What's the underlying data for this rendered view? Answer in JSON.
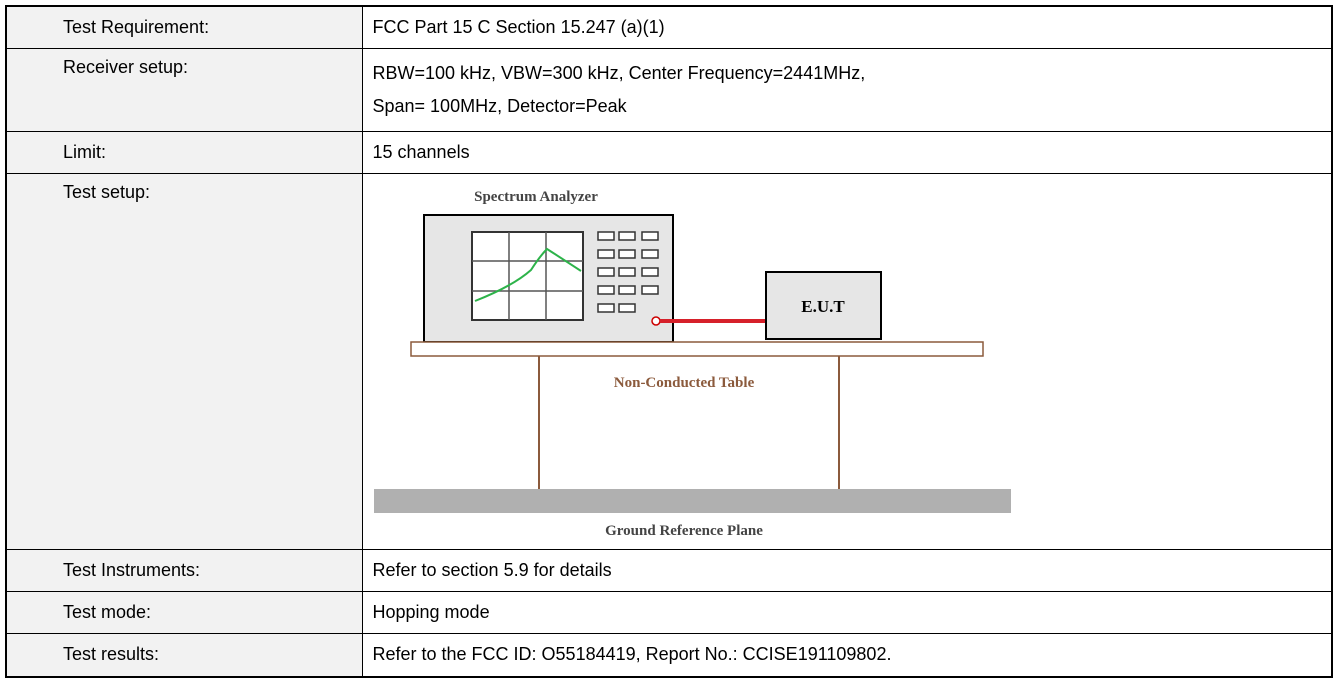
{
  "table": {
    "rows": [
      {
        "label": "Test Requirement:",
        "lines": [
          "FCC Part 15 C Section 15.247 (a)(1)"
        ]
      },
      {
        "label": "Receiver setup:",
        "lines": [
          "RBW=100 kHz, VBW=300 kHz, Center Frequency=2441MHz,",
          "Span= 100MHz, Detector=Peak"
        ]
      },
      {
        "label": "Limit:",
        "lines": [
          "15 channels"
        ]
      },
      {
        "label": "Test setup:",
        "diagram": {
          "analyzer": "Spectrum Analyzer",
          "eut": "E.U.T",
          "table": "Non-Conducted Table",
          "ground": "Ground Reference Plane"
        }
      },
      {
        "label": "Test Instruments:",
        "lines": [
          "Refer to section 5.9 for details"
        ]
      },
      {
        "label": "Test mode:",
        "lines": [
          "Hopping mode"
        ]
      },
      {
        "label": "Test results:",
        "lines": [
          "Refer to the FCC ID: O55184419, Report No.: CCISE191109802."
        ]
      }
    ]
  }
}
